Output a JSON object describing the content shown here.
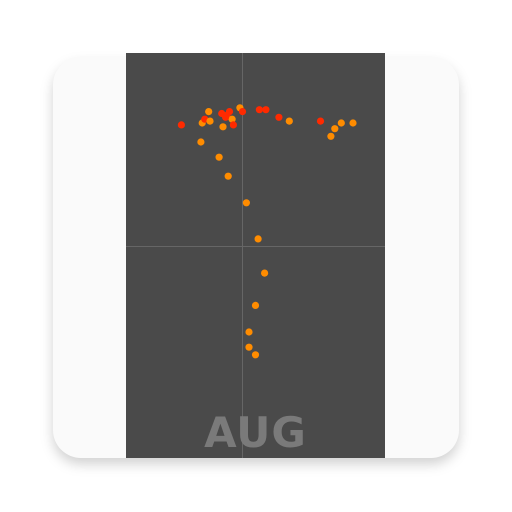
{
  "app_icon": {
    "month": "AUG",
    "colors": {
      "card": "#fafafa",
      "panel": "#4a4a4a",
      "crosshair": "#666666",
      "label": "#7a7a7a",
      "dot_orange": "#ff8c00",
      "dot_red": "#ff2a00"
    },
    "icon_name": "sun-analemma-icon"
  },
  "chart_data": {
    "type": "scatter",
    "title": "",
    "xlabel": "",
    "ylabel": "",
    "xlim": [
      -1,
      1
    ],
    "ylim": [
      -1,
      1
    ],
    "grid": "crosshair",
    "points": [
      {
        "x": -0.47,
        "y": 0.64,
        "c": "red"
      },
      {
        "x": -0.31,
        "y": 0.65,
        "c": "orange"
      },
      {
        "x": -0.29,
        "y": 0.67,
        "c": "red"
      },
      {
        "x": -0.26,
        "y": 0.71,
        "c": "orange"
      },
      {
        "x": -0.25,
        "y": 0.66,
        "c": "orange"
      },
      {
        "x": -0.15,
        "y": 0.63,
        "c": "orange"
      },
      {
        "x": -0.12,
        "y": 0.69,
        "c": "red"
      },
      {
        "x": -0.1,
        "y": 0.71,
        "c": "red"
      },
      {
        "x": -0.08,
        "y": 0.67,
        "c": "orange"
      },
      {
        "x": -0.02,
        "y": 0.73,
        "c": "orange"
      },
      {
        "x": 0.0,
        "y": 0.71,
        "c": "red"
      },
      {
        "x": 0.13,
        "y": 0.72,
        "c": "red"
      },
      {
        "x": 0.18,
        "y": 0.72,
        "c": "red"
      },
      {
        "x": 0.28,
        "y": 0.68,
        "c": "red"
      },
      {
        "x": 0.36,
        "y": 0.66,
        "c": "orange"
      },
      {
        "x": 0.6,
        "y": 0.66,
        "c": "red"
      },
      {
        "x": 0.68,
        "y": 0.58,
        "c": "orange"
      },
      {
        "x": 0.71,
        "y": 0.62,
        "c": "orange"
      },
      {
        "x": 0.76,
        "y": 0.65,
        "c": "orange"
      },
      {
        "x": 0.85,
        "y": 0.65,
        "c": "orange"
      },
      {
        "x": -0.32,
        "y": 0.55,
        "c": "orange"
      },
      {
        "x": -0.18,
        "y": 0.47,
        "c": "orange"
      },
      {
        "x": -0.11,
        "y": 0.37,
        "c": "orange"
      },
      {
        "x": 0.03,
        "y": 0.23,
        "c": "orange"
      },
      {
        "x": 0.12,
        "y": 0.04,
        "c": "orange"
      },
      {
        "x": 0.17,
        "y": -0.14,
        "c": "orange"
      },
      {
        "x": 0.1,
        "y": -0.31,
        "c": "orange"
      },
      {
        "x": 0.05,
        "y": -0.45,
        "c": "orange"
      },
      {
        "x": 0.05,
        "y": -0.53,
        "c": "orange"
      },
      {
        "x": 0.1,
        "y": -0.57,
        "c": "orange"
      },
      {
        "x": -0.07,
        "y": 0.64,
        "c": "red"
      },
      {
        "x": -0.16,
        "y": 0.7,
        "c": "red"
      },
      {
        "x": -0.13,
        "y": 0.68,
        "c": "red"
      }
    ]
  }
}
